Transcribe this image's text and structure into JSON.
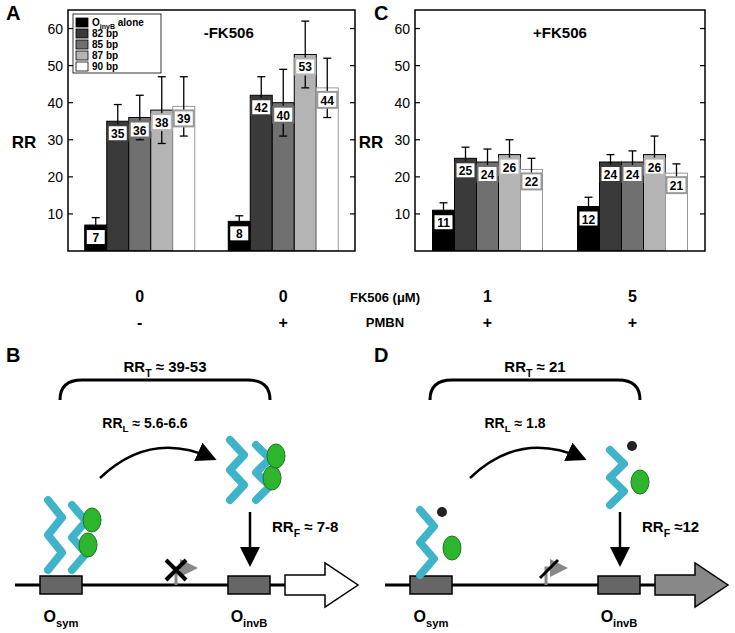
{
  "panel_labels": [
    "A",
    "B",
    "C",
    "D"
  ],
  "chart_data": [
    {
      "type": "bar",
      "title": "-FK506",
      "y_label": "RR",
      "categories": [
        "0",
        "0"
      ],
      "ylim": [
        0,
        65
      ],
      "yticks": [
        10,
        20,
        30,
        40,
        50,
        60
      ],
      "data_labels": true,
      "legend": "top-left",
      "series": [
        {
          "name": "OinvB alone",
          "color": "#000000",
          "values": [
            7,
            8
          ],
          "errors": [
            2,
            1.5
          ]
        },
        {
          "name": "82 bp",
          "color": "#3a3a3a",
          "values": [
            35,
            42
          ],
          "errors": [
            4.5,
            5
          ]
        },
        {
          "name": "85 bp",
          "color": "#707070",
          "values": [
            36,
            40
          ],
          "errors": [
            6,
            9
          ]
        },
        {
          "name": "87 bp",
          "color": "#b4b4b4",
          "values": [
            38,
            53
          ],
          "errors": [
            9,
            9
          ]
        },
        {
          "name": "90 bp",
          "color": "#ffffff",
          "values": [
            39,
            44
          ],
          "errors": [
            8,
            8
          ]
        }
      ]
    },
    {
      "type": "bar",
      "title": "+FK506",
      "y_label": "RR",
      "categories": [
        "1",
        "5"
      ],
      "ylim": [
        0,
        65
      ],
      "yticks": [
        10,
        20,
        30,
        40,
        50,
        60
      ],
      "data_labels": true,
      "series": [
        {
          "color": "#000000",
          "values": [
            11,
            12
          ],
          "errors": [
            2,
            2.5
          ]
        },
        {
          "color": "#3a3a3a",
          "values": [
            25,
            24
          ],
          "errors": [
            3,
            2
          ]
        },
        {
          "color": "#707070",
          "values": [
            24,
            24
          ],
          "errors": [
            3.5,
            3
          ]
        },
        {
          "color": "#b4b4b4",
          "values": [
            26,
            26
          ],
          "errors": [
            4,
            5
          ]
        },
        {
          "color": "#ffffff",
          "values": [
            22,
            21
          ],
          "errors": [
            3,
            2.5
          ]
        }
      ]
    }
  ],
  "x_rows": {
    "fk506_label": "FK506 (μM)",
    "pmbn_label": "PMBN",
    "pmbn": [
      "-",
      "+",
      "+",
      "+"
    ]
  },
  "diagrams": [
    {
      "rr_total": [
        "RR",
        "T",
        " ≈ 39-53"
      ],
      "rr_loop": [
        "RR",
        "L",
        " ≈ 5.6-6.6"
      ],
      "rr_free": [
        "RR",
        "F",
        " ≈ 7-8"
      ],
      "site_1": [
        "O",
        "sym"
      ],
      "site_2": [
        "O",
        "invB"
      ]
    },
    {
      "rr_total": [
        "RR",
        "T",
        " ≈ 21"
      ],
      "rr_loop": [
        "RR",
        "L",
        " ≈ 1.8"
      ],
      "rr_free": [
        "RR",
        "F",
        " ≈12"
      ],
      "site_1": [
        "O",
        "sym"
      ],
      "site_2": [
        "O",
        "invB"
      ]
    }
  ]
}
